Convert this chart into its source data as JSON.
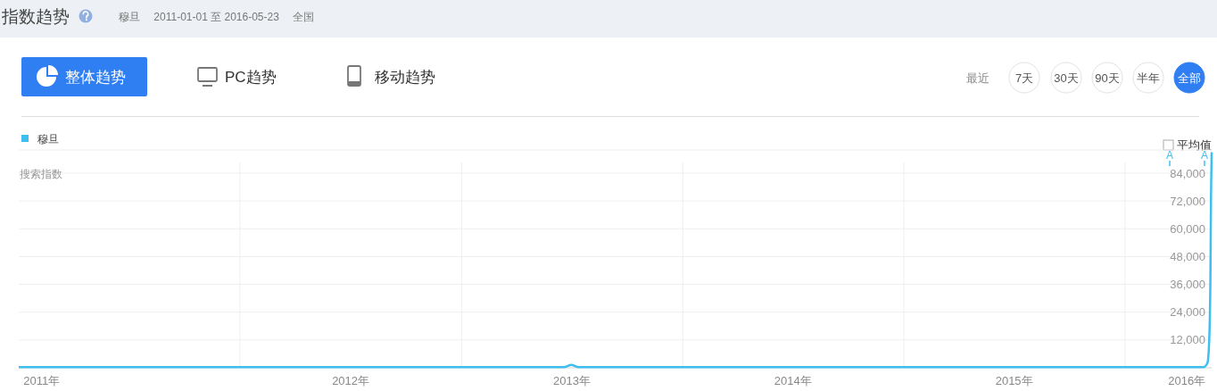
{
  "chart_data": {
    "type": "line",
    "title": "指数趋势",
    "subtitle": "穆旦　2011-01-01 至 2016-05-23　全国",
    "ylabel": "搜索指数",
    "x": [
      "2011-01-01",
      "2011-07-01",
      "2012-01-01",
      "2012-07-01",
      "2013-01-01",
      "2013-06-20",
      "2013-07-01",
      "2013-07-12",
      "2014-01-01",
      "2014-07-01",
      "2015-01-01",
      "2015-07-01",
      "2016-01-01",
      "2016-05-10",
      "2016-05-16",
      "2016-05-19",
      "2016-05-21",
      "2016-05-22",
      "2016-05-23"
    ],
    "series": [
      {
        "name": "穆旦",
        "color": "#3fbff0",
        "values": [
          300,
          300,
          300,
          300,
          300,
          300,
          1300,
          300,
          300,
          300,
          300,
          300,
          300,
          300,
          2000,
          12000,
          40000,
          75000,
          93000
        ]
      }
    ],
    "xlim": [
      "2011-01-01",
      "2016-05-23"
    ],
    "ylim": [
      0,
      94000
    ],
    "xticks": [
      {
        "value": "2011-02-08",
        "label": "2011年"
      },
      {
        "value": "2012-01-01",
        "label": null
      },
      {
        "value": "2012-07-02",
        "label": "2012年"
      },
      {
        "value": "2013-01-01",
        "label": null
      },
      {
        "value": "2013-07-02",
        "label": "2013年"
      },
      {
        "value": "2014-01-01",
        "label": null
      },
      {
        "value": "2014-07-02",
        "label": "2014年"
      },
      {
        "value": "2015-01-01",
        "label": null
      },
      {
        "value": "2015-07-02",
        "label": "2015年"
      },
      {
        "value": "2016-01-01",
        "label": null
      },
      {
        "value": "2016-04-12",
        "label": "2016年"
      }
    ],
    "yticks": [
      {
        "value": 0,
        "label": null
      },
      {
        "value": 12000,
        "label": "12,000"
      },
      {
        "value": 24000,
        "label": "24,000"
      },
      {
        "value": 36000,
        "label": "36,000"
      },
      {
        "value": 48000,
        "label": "48,000"
      },
      {
        "value": 60000,
        "label": "60,000"
      },
      {
        "value": 72000,
        "label": "72,000"
      },
      {
        "value": 84000,
        "label": "84,000"
      }
    ],
    "grid": true,
    "legend": "top left",
    "annotations": [
      "整体趋势",
      "PC趋势",
      "移动趋势",
      "最近",
      "7天",
      "30天",
      "90天",
      "半年",
      "全部",
      "平均值",
      "A",
      "A"
    ]
  }
}
